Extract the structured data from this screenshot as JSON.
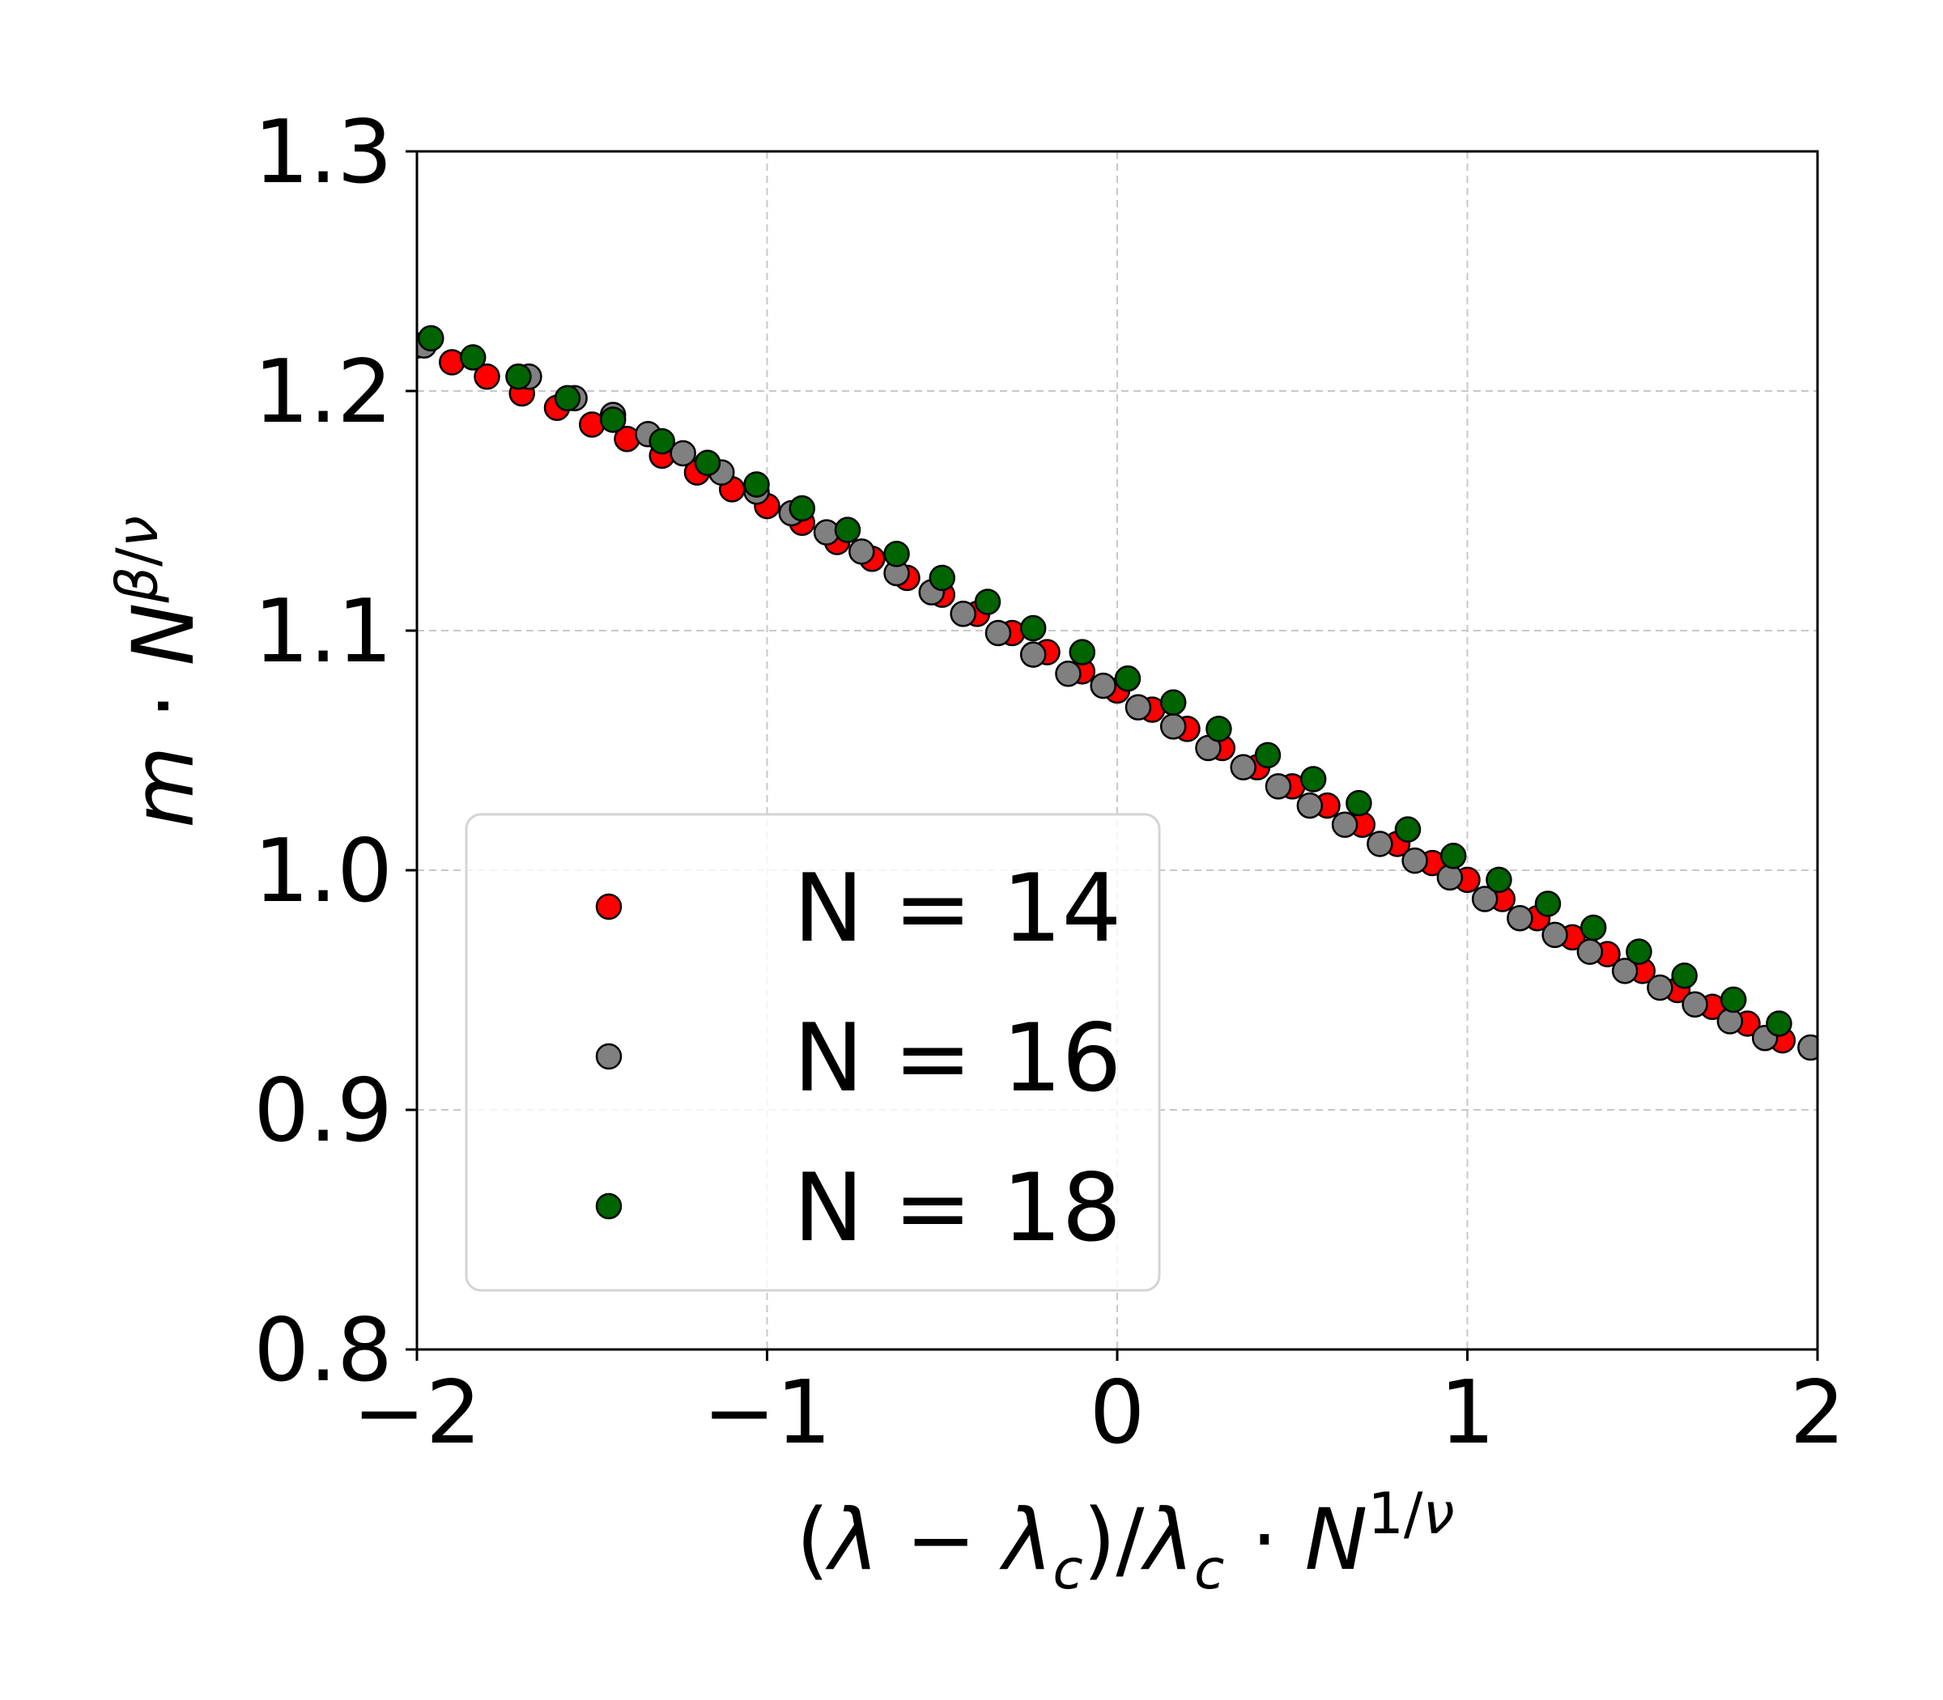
{
  "chart_data": {
    "type": "scatter",
    "title": "",
    "xlabel": "(λ − λc)/λc · N^(1/ν)",
    "ylabel": "m · N^(β/ν)",
    "xlim": [
      -2,
      2
    ],
    "ylim": [
      0.8,
      1.3
    ],
    "x_ticks": [
      -2,
      -1,
      0,
      1,
      2
    ],
    "x_tick_labels": [
      "−2",
      "−1",
      "0",
      "1",
      "2"
    ],
    "y_ticks": [
      0.8,
      0.9,
      1.0,
      1.1,
      1.2,
      1.3
    ],
    "y_tick_labels": [
      "0.8",
      "0.9",
      "1.0",
      "1.1",
      "1.2",
      "1.3"
    ],
    "grid": true,
    "legend_position": "lower-left",
    "colors": {
      "N14": "#ff0000",
      "N16": "#808080",
      "N18": "#006400",
      "marker_edge": "#000000",
      "grid": "#c8c8c8"
    },
    "series": [
      {
        "name": "N = 14",
        "color": "#ff0000",
        "x": [
          -2.0,
          -1.9,
          -1.8,
          -1.7,
          -1.6,
          -1.5,
          -1.4,
          -1.3,
          -1.2,
          -1.1,
          -1.0,
          -0.9,
          -0.8,
          -0.7,
          -0.6,
          -0.5,
          -0.4,
          -0.3,
          -0.2,
          -0.1,
          0.0,
          0.1,
          0.2,
          0.3,
          0.4,
          0.5,
          0.6,
          0.7,
          0.8,
          0.9,
          1.0,
          1.1,
          1.2,
          1.3,
          1.4,
          1.5,
          1.6,
          1.7,
          1.8,
          1.9
        ],
        "y": [
          1.219,
          1.212,
          1.206,
          1.199,
          1.193,
          1.186,
          1.18,
          1.173,
          1.166,
          1.159,
          1.152,
          1.145,
          1.137,
          1.13,
          1.122,
          1.115,
          1.107,
          1.099,
          1.091,
          1.083,
          1.075,
          1.067,
          1.059,
          1.051,
          1.043,
          1.035,
          1.027,
          1.019,
          1.011,
          1.003,
          0.996,
          0.988,
          0.98,
          0.972,
          0.965,
          0.958,
          0.95,
          0.943,
          0.936,
          0.929
        ]
      },
      {
        "name": "N = 16",
        "color": "#808080",
        "x": [
          -1.98,
          -1.68,
          -1.55,
          -1.44,
          -1.34,
          -1.24,
          -1.13,
          -1.03,
          -0.93,
          -0.83,
          -0.73,
          -0.63,
          -0.53,
          -0.44,
          -0.34,
          -0.24,
          -0.14,
          -0.04,
          0.06,
          0.16,
          0.26,
          0.36,
          0.46,
          0.55,
          0.65,
          0.75,
          0.85,
          0.95,
          1.05,
          1.15,
          1.25,
          1.35,
          1.45,
          1.55,
          1.65,
          1.75,
          1.85,
          1.98
        ],
        "y": [
          1.219,
          1.206,
          1.197,
          1.19,
          1.182,
          1.174,
          1.166,
          1.158,
          1.149,
          1.141,
          1.133,
          1.124,
          1.116,
          1.107,
          1.099,
          1.09,
          1.082,
          1.077,
          1.068,
          1.06,
          1.051,
          1.043,
          1.035,
          1.027,
          1.019,
          1.011,
          1.004,
          0.997,
          0.988,
          0.98,
          0.973,
          0.966,
          0.958,
          0.951,
          0.944,
          0.937,
          0.93,
          0.926
        ]
      },
      {
        "name": "N = 18",
        "color": "#006400",
        "x": [
          -1.96,
          -1.84,
          -1.71,
          -1.57,
          -1.44,
          -1.3,
          -1.17,
          -1.03,
          -0.9,
          -0.77,
          -0.63,
          -0.5,
          -0.37,
          -0.24,
          -0.1,
          0.03,
          0.16,
          0.29,
          0.43,
          0.56,
          0.69,
          0.83,
          0.96,
          1.09,
          1.23,
          1.36,
          1.49,
          1.62,
          1.76,
          1.89
        ],
        "y": [
          1.222,
          1.214,
          1.206,
          1.197,
          1.188,
          1.179,
          1.17,
          1.161,
          1.151,
          1.142,
          1.132,
          1.122,
          1.112,
          1.101,
          1.091,
          1.08,
          1.07,
          1.059,
          1.048,
          1.038,
          1.028,
          1.017,
          1.006,
          0.996,
          0.986,
          0.976,
          0.966,
          0.956,
          0.946,
          0.936
        ]
      }
    ]
  }
}
